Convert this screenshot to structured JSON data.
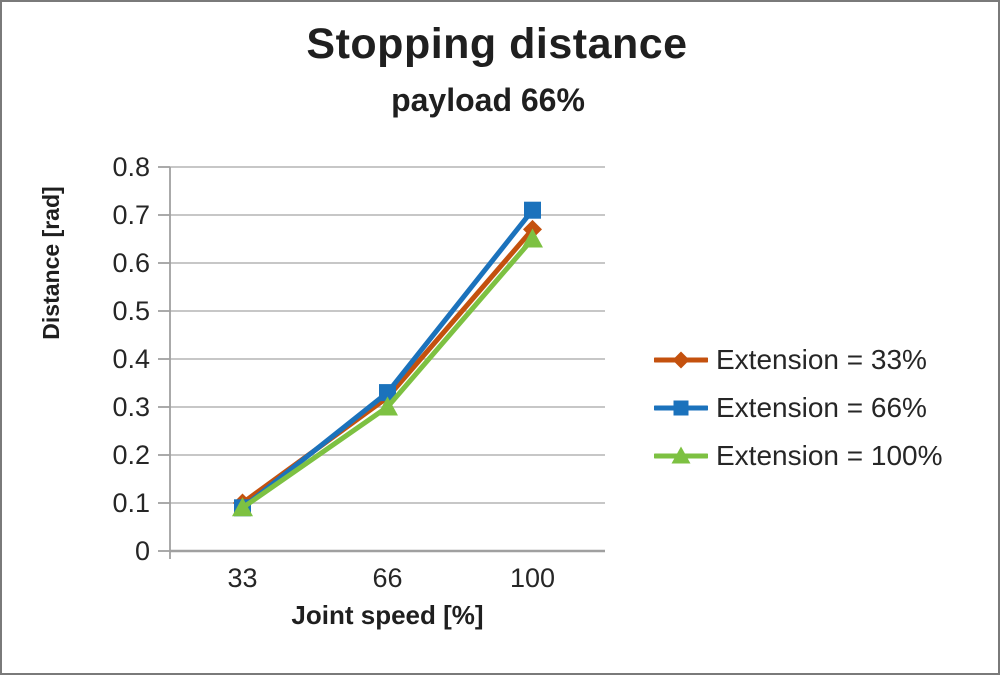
{
  "chart_data": {
    "type": "line",
    "title": "Stopping distance",
    "subtitle": "payload 66%",
    "xlabel": "Joint speed [%]",
    "ylabel": "Distance [rad]",
    "categories": [
      "33",
      "66",
      "100"
    ],
    "y_ticks": [
      "0",
      "0.1",
      "0.2",
      "0.3",
      "0.4",
      "0.5",
      "0.6",
      "0.7",
      "0.8"
    ],
    "ylim": [
      0,
      0.8
    ],
    "grid": true,
    "legend_position": "right",
    "series": [
      {
        "name": "Extension = 33%",
        "marker": "diamond",
        "color": "#C4510E",
        "values": [
          0.1,
          0.32,
          0.67
        ]
      },
      {
        "name": "Extension = 66%",
        "marker": "square",
        "color": "#1B72BC",
        "values": [
          0.09,
          0.33,
          0.71
        ]
      },
      {
        "name": "Extension = 100%",
        "marker": "triangle",
        "color": "#7DC142",
        "values": [
          0.09,
          0.3,
          0.65
        ]
      }
    ],
    "colors": {
      "gridline": "#BFBFBF",
      "axis": "#A0A0A0",
      "text": "#262626"
    }
  }
}
